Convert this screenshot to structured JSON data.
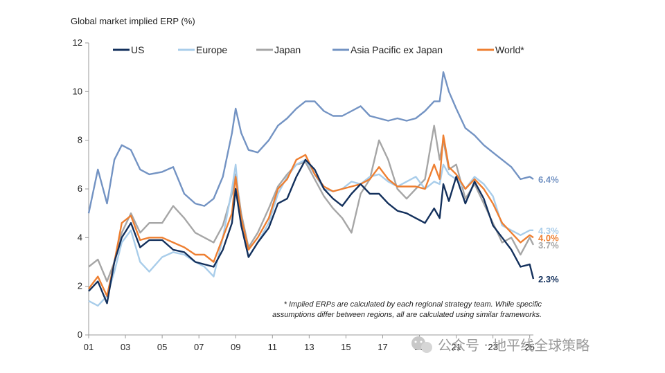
{
  "chart_data": {
    "type": "line",
    "title": "Global market implied ERP (%)",
    "xlabel": "",
    "ylabel": "",
    "x_tick_labels": [
      "01",
      "03",
      "05",
      "07",
      "09",
      "11",
      "13",
      "15",
      "17",
      "19",
      "21",
      "23",
      "25"
    ],
    "x_tick_years": [
      2001,
      2003,
      2005,
      2007,
      2009,
      2011,
      2013,
      2015,
      2017,
      2019,
      2021,
      2023,
      2025
    ],
    "xlim": [
      2001.0,
      2025.2
    ],
    "ylim": [
      0,
      12
    ],
    "y_ticks": [
      0,
      2,
      4,
      6,
      8,
      10,
      12
    ],
    "y_tick_labels": [
      "0",
      "2",
      "4",
      "6",
      "8",
      "10",
      "12"
    ],
    "legend_position": "top",
    "series": [
      {
        "name": "US",
        "color": "#13305c",
        "end_label": "2.3%",
        "end_value": 2.3,
        "x": [
          2001.0,
          2001.5,
          2002.0,
          2002.4,
          2002.8,
          2003.3,
          2003.8,
          2004.3,
          2005.0,
          2005.6,
          2006.2,
          2006.8,
          2007.3,
          2007.8,
          2008.3,
          2008.8,
          2009.0,
          2009.3,
          2009.7,
          2010.2,
          2010.8,
          2011.3,
          2011.8,
          2012.3,
          2012.8,
          2013.3,
          2013.8,
          2014.3,
          2014.8,
          2015.3,
          2015.8,
          2016.3,
          2016.8,
          2017.3,
          2017.8,
          2018.3,
          2018.8,
          2019.3,
          2019.8,
          2020.1,
          2020.3,
          2020.6,
          2021.0,
          2021.5,
          2022.0,
          2022.5,
          2023.0,
          2023.5,
          2024.0,
          2024.5,
          2025.0,
          2025.2
        ],
        "y": [
          1.8,
          2.2,
          1.3,
          3.0,
          4.0,
          4.6,
          3.6,
          3.9,
          3.9,
          3.5,
          3.4,
          3.0,
          2.9,
          2.8,
          3.5,
          4.6,
          6.0,
          4.5,
          3.2,
          3.8,
          4.4,
          5.4,
          5.6,
          6.5,
          7.2,
          6.8,
          6.0,
          5.6,
          5.3,
          5.8,
          6.2,
          5.8,
          5.8,
          5.4,
          5.1,
          5.0,
          4.8,
          4.6,
          5.2,
          4.8,
          6.2,
          5.5,
          6.5,
          5.4,
          6.3,
          5.6,
          4.5,
          4.0,
          3.5,
          2.8,
          2.9,
          2.3
        ]
      },
      {
        "name": "Europe",
        "color": "#a9cdea",
        "end_label": "4.3%",
        "end_value": 4.3,
        "x": [
          2001.0,
          2001.5,
          2002.0,
          2002.4,
          2002.8,
          2003.3,
          2003.8,
          2004.3,
          2005.0,
          2005.6,
          2006.2,
          2006.8,
          2007.3,
          2007.8,
          2008.3,
          2008.8,
          2009.0,
          2009.3,
          2009.7,
          2010.2,
          2010.8,
          2011.3,
          2011.8,
          2012.3,
          2012.8,
          2013.3,
          2013.8,
          2014.3,
          2014.8,
          2015.3,
          2015.8,
          2016.3,
          2016.8,
          2017.3,
          2017.8,
          2018.3,
          2018.8,
          2019.3,
          2019.8,
          2020.1,
          2020.3,
          2020.6,
          2021.0,
          2021.5,
          2022.0,
          2022.5,
          2023.0,
          2023.5,
          2024.0,
          2024.5,
          2025.0,
          2025.2
        ],
        "y": [
          1.4,
          1.2,
          1.6,
          2.6,
          3.8,
          4.3,
          3.0,
          2.6,
          3.2,
          3.4,
          3.3,
          3.0,
          2.8,
          2.4,
          4.0,
          6.0,
          7.0,
          4.5,
          3.2,
          3.8,
          4.6,
          5.8,
          6.5,
          7.0,
          7.2,
          6.6,
          6.0,
          5.9,
          6.0,
          6.3,
          6.2,
          6.5,
          6.6,
          6.3,
          6.1,
          6.3,
          6.5,
          6.0,
          6.3,
          6.2,
          7.0,
          6.6,
          6.4,
          6.0,
          6.5,
          6.2,
          5.7,
          4.5,
          4.3,
          4.1,
          4.3,
          4.3
        ]
      },
      {
        "name": "Japan",
        "color": "#a6a6a6",
        "end_label": "3.7%",
        "end_value": 3.7,
        "x": [
          2001.0,
          2001.5,
          2002.0,
          2002.4,
          2002.8,
          2003.3,
          2003.8,
          2004.3,
          2005.0,
          2005.6,
          2006.2,
          2006.8,
          2007.3,
          2007.8,
          2008.3,
          2008.8,
          2009.0,
          2009.3,
          2009.7,
          2010.2,
          2010.8,
          2011.3,
          2011.8,
          2012.3,
          2012.8,
          2013.3,
          2013.8,
          2014.3,
          2014.8,
          2015.3,
          2015.8,
          2016.3,
          2016.8,
          2017.3,
          2017.8,
          2018.3,
          2018.8,
          2019.3,
          2019.8,
          2020.1,
          2020.3,
          2020.6,
          2021.0,
          2021.5,
          2022.0,
          2022.5,
          2023.0,
          2023.5,
          2024.0,
          2024.5,
          2025.0,
          2025.2
        ],
        "y": [
          2.8,
          3.1,
          2.2,
          3.0,
          4.2,
          5.0,
          4.2,
          4.6,
          4.6,
          5.3,
          4.8,
          4.2,
          4.0,
          3.8,
          4.5,
          5.8,
          6.6,
          5.0,
          3.6,
          4.2,
          5.2,
          6.1,
          6.6,
          7.0,
          7.1,
          6.4,
          5.7,
          5.2,
          4.8,
          4.2,
          5.8,
          6.4,
          8.0,
          7.2,
          6.0,
          5.6,
          6.0,
          6.4,
          8.6,
          7.2,
          8.0,
          6.8,
          7.0,
          5.6,
          6.2,
          5.4,
          4.6,
          3.8,
          4.0,
          3.3,
          4.0,
          3.7
        ]
      },
      {
        "name": "Asia Pacific ex Japan",
        "color": "#7393c3",
        "end_label": "6.4%",
        "end_value": 6.4,
        "x": [
          2001.0,
          2001.5,
          2002.0,
          2002.4,
          2002.8,
          2003.3,
          2003.8,
          2004.3,
          2005.0,
          2005.6,
          2006.2,
          2006.8,
          2007.3,
          2007.8,
          2008.3,
          2008.8,
          2009.0,
          2009.3,
          2009.7,
          2010.2,
          2010.8,
          2011.3,
          2011.8,
          2012.3,
          2012.8,
          2013.3,
          2013.8,
          2014.3,
          2014.8,
          2015.3,
          2015.8,
          2016.3,
          2016.8,
          2017.3,
          2017.8,
          2018.3,
          2018.8,
          2019.3,
          2019.8,
          2020.1,
          2020.3,
          2020.6,
          2021.0,
          2021.5,
          2022.0,
          2022.5,
          2023.0,
          2023.5,
          2024.0,
          2024.5,
          2025.0,
          2025.2
        ],
        "y": [
          5.0,
          6.8,
          5.4,
          7.2,
          7.8,
          7.6,
          6.8,
          6.6,
          6.7,
          6.9,
          5.8,
          5.4,
          5.3,
          5.6,
          6.5,
          8.3,
          9.3,
          8.3,
          7.6,
          7.5,
          8.0,
          8.6,
          8.9,
          9.3,
          9.6,
          9.6,
          9.2,
          9.0,
          9.0,
          9.2,
          9.4,
          9.0,
          8.9,
          8.8,
          8.9,
          8.8,
          8.9,
          9.2,
          9.6,
          9.6,
          10.8,
          10.0,
          9.3,
          8.5,
          8.2,
          7.8,
          7.5,
          7.2,
          6.9,
          6.4,
          6.5,
          6.4
        ]
      },
      {
        "name": "World*",
        "color": "#ee7f31",
        "end_label": "4.0%",
        "end_value": 4.0,
        "x": [
          2001.0,
          2001.5,
          2002.0,
          2002.4,
          2002.8,
          2003.3,
          2003.8,
          2004.3,
          2005.0,
          2005.6,
          2006.2,
          2006.8,
          2007.3,
          2007.8,
          2008.3,
          2008.8,
          2009.0,
          2009.3,
          2009.7,
          2010.2,
          2010.8,
          2011.3,
          2011.8,
          2012.3,
          2012.8,
          2013.3,
          2013.8,
          2014.3,
          2014.8,
          2015.3,
          2015.8,
          2016.3,
          2016.8,
          2017.3,
          2017.8,
          2018.3,
          2018.8,
          2019.3,
          2019.8,
          2020.1,
          2020.3,
          2020.6,
          2021.0,
          2021.5,
          2022.0,
          2022.5,
          2023.0,
          2023.5,
          2024.0,
          2024.5,
          2025.0,
          2025.2
        ],
        "y": [
          1.9,
          2.4,
          1.6,
          3.0,
          4.6,
          4.9,
          3.9,
          4.0,
          4.0,
          3.8,
          3.6,
          3.3,
          3.3,
          3.0,
          4.0,
          5.0,
          6.5,
          4.8,
          3.5,
          4.0,
          4.8,
          6.0,
          6.4,
          7.2,
          7.4,
          6.6,
          6.1,
          5.9,
          6.0,
          6.1,
          6.2,
          6.4,
          6.9,
          6.4,
          6.1,
          6.1,
          6.1,
          6.0,
          7.0,
          6.4,
          8.2,
          6.9,
          6.6,
          6.0,
          6.4,
          6.0,
          5.4,
          4.6,
          4.2,
          3.8,
          4.1,
          4.0
        ]
      }
    ],
    "annotations": [
      "* Implied ERPs are calculated by each regional strategy team. While specific",
      "assumptions differ between regions, all are calculated using similar frameworks."
    ]
  },
  "watermark": {
    "text": "公众号 · 地平线全球策略"
  },
  "colors": {
    "axis": "#9a9a9a",
    "text": "#222222"
  }
}
